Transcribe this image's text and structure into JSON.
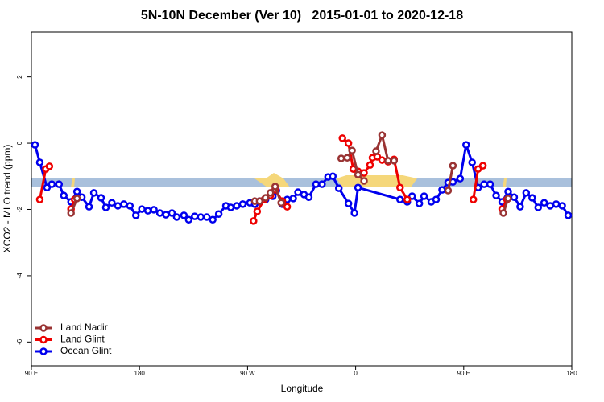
{
  "chart_data": {
    "type": "line",
    "title": "5N-10N December (Ver 10)   2015-01-01 to 2020-12-18",
    "x_label": "Longitude",
    "y_label": "XCO2 - MLO trend (ppm)",
    "xlim": [
      90,
      540
    ],
    "ylim": [
      -6.72,
      3.35
    ],
    "xticks": [
      {
        "value": 90,
        "label": "90 E"
      },
      {
        "value": 180,
        "label": "180"
      },
      {
        "value": 270,
        "label": "90 W"
      },
      {
        "value": 360,
        "label": "0"
      },
      {
        "value": 450,
        "label": "90 E"
      },
      {
        "value": 540,
        "label": "180"
      }
    ],
    "yticks": [
      2,
      0,
      -2,
      -4,
      -6
    ],
    "legend": "bottom-left",
    "series": [
      {
        "name": "Land Nadir",
        "color": "#993333",
        "x": [
          123,
          128,
          null,
          276,
          280,
          285,
          289,
          293,
          298,
          null,
          348,
          353,
          357,
          362,
          367,
          null,
          377,
          382,
          387,
          392,
          null,
          437,
          441,
          null,
          483,
          487
        ],
        "values": [
          -2.11,
          -1.67,
          null,
          -1.75,
          -1.75,
          -1.65,
          -1.5,
          -1.31,
          -1.8,
          null,
          -0.46,
          -0.44,
          -0.22,
          -0.95,
          -1.14,
          null,
          -0.24,
          0.24,
          -0.53,
          -0.53,
          null,
          -1.43,
          -0.68,
          null,
          -2.11,
          -1.67
        ]
      },
      {
        "name": "Land Glint",
        "color": "#ee0000",
        "x": [
          97,
          102,
          105,
          null,
          123,
          126,
          null,
          275,
          278,
          284,
          289,
          293,
          299,
          303,
          null,
          349,
          354,
          358,
          362,
          367,
          372,
          374,
          378,
          382,
          387,
          392,
          397,
          403,
          null,
          458,
          462,
          466,
          null,
          482,
          486
        ],
        "values": [
          -1.7,
          -0.78,
          -0.7,
          null,
          -1.99,
          -1.7,
          null,
          -2.35,
          -2.06,
          -1.7,
          -1.58,
          -1.41,
          -1.75,
          -1.92,
          null,
          0.15,
          0.0,
          -0.78,
          -0.85,
          -0.9,
          -0.66,
          -0.44,
          -0.41,
          -0.51,
          -0.56,
          -0.49,
          -1.34,
          -1.7,
          null,
          -1.7,
          -0.78,
          -0.68,
          null,
          -1.99,
          -1.7
        ]
      },
      {
        "name": "Ocean Glint",
        "color": "#0000ee",
        "x": [
          93,
          97,
          103,
          107,
          113,
          117,
          123,
          128,
          132,
          138,
          142,
          148,
          152,
          157,
          162,
          167,
          172,
          177,
          182,
          187,
          192,
          197,
          202,
          207,
          211,
          217,
          221,
          226,
          231,
          236,
          241,
          246,
          252,
          256,
          261,
          266,
          272,
          276,
          280,
          285,
          291,
          294,
          299,
          303,
          308,
          312,
          317,
          321,
          327,
          332,
          337,
          341,
          346,
          354,
          359,
          362,
          397,
          403,
          407,
          413,
          417,
          423,
          427,
          432,
          437,
          441,
          447,
          452,
          457,
          462,
          467,
          472,
          477,
          482,
          487,
          492,
          497,
          502,
          507,
          512,
          517,
          522,
          527,
          532,
          537
        ],
        "values": [
          -0.05,
          -0.58,
          -1.34,
          -1.24,
          -1.24,
          -1.58,
          -1.77,
          -1.46,
          -1.63,
          -1.92,
          -1.5,
          -1.65,
          -1.94,
          -1.8,
          -1.89,
          -1.84,
          -1.89,
          -2.18,
          -1.99,
          -2.04,
          -2.01,
          -2.11,
          -2.16,
          -2.11,
          -2.23,
          -2.18,
          -2.31,
          -2.21,
          -2.23,
          -2.23,
          -2.31,
          -2.14,
          -1.89,
          -1.94,
          -1.89,
          -1.84,
          -1.8,
          -1.84,
          -1.75,
          -1.7,
          -1.6,
          -1.43,
          -1.84,
          -1.7,
          -1.67,
          -1.48,
          -1.55,
          -1.63,
          -1.24,
          -1.24,
          -1.02,
          -1.0,
          -1.36,
          -1.82,
          -2.11,
          -1.34,
          -1.7,
          -1.77,
          -1.6,
          -1.82,
          -1.6,
          -1.77,
          -1.7,
          -1.41,
          -1.19,
          -1.17,
          -1.07,
          -0.05,
          -0.58,
          -1.34,
          -1.24,
          -1.24,
          -1.58,
          -1.77,
          -1.46,
          -1.63,
          -1.92,
          -1.5,
          -1.65,
          -1.94,
          -1.8,
          -1.89,
          -1.84,
          -1.89,
          -2.18
        ]
      }
    ]
  }
}
